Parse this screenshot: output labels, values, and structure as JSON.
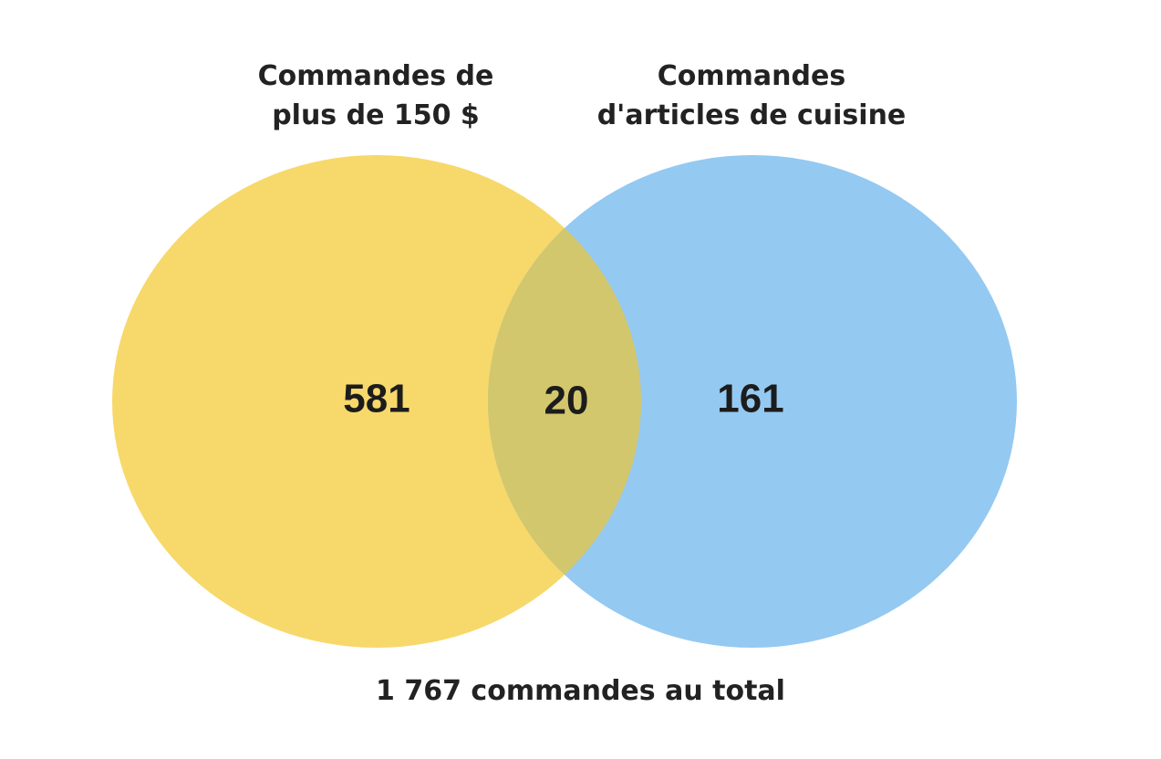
{
  "chart_data": {
    "type": "venn",
    "sets": [
      {
        "name": "Commandes de plus de 150 $",
        "color": "#f7d86a",
        "value": 581
      },
      {
        "name": "Commandes d'articles de cuisine",
        "color": "#94c9f1",
        "value": 161
      }
    ],
    "intersection": {
      "value": 20,
      "color": "#d2c76c"
    },
    "caption": "1 767 commandes au total"
  }
}
